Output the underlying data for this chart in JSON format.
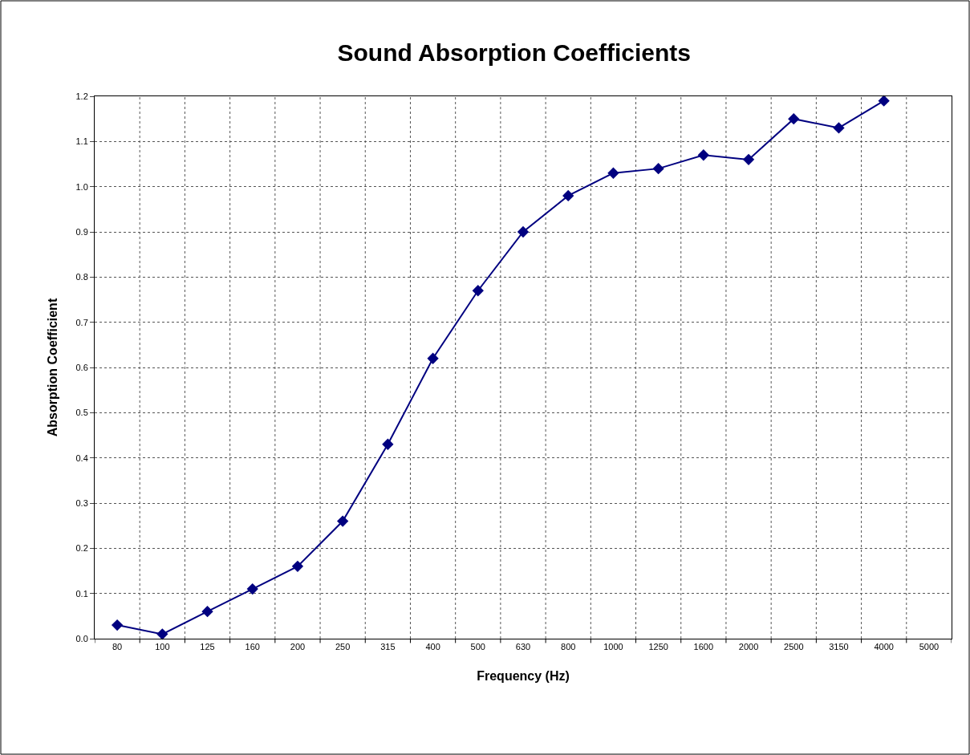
{
  "chart_data": {
    "type": "line",
    "title": "Sound Absorption Coefficients",
    "xlabel": "Frequency (Hz)",
    "ylabel": "Absorption Coefficient",
    "categories": [
      "80",
      "100",
      "125",
      "160",
      "200",
      "250",
      "315",
      "400",
      "500",
      "630",
      "800",
      "1000",
      "1250",
      "1600",
      "2000",
      "2500",
      "3150",
      "4000",
      "5000"
    ],
    "series": [
      {
        "color": "#000080",
        "values": [
          0.03,
          0.01,
          0.06,
          0.11,
          0.16,
          0.26,
          0.43,
          0.62,
          0.77,
          0.9,
          0.98,
          1.03,
          1.04,
          1.07,
          1.06,
          1.15,
          1.13,
          1.19,
          null
        ]
      }
    ],
    "ylim": [
      0,
      1.2
    ],
    "yticks": [
      {
        "value": 0,
        "label": "0.0"
      },
      {
        "value": 0.1,
        "label": "0.1"
      },
      {
        "value": 0.2,
        "label": "0.2"
      },
      {
        "value": 0.3,
        "label": "0.3"
      },
      {
        "value": 0.4,
        "label": "0.4"
      },
      {
        "value": 0.5,
        "label": "0.5"
      },
      {
        "value": 0.6,
        "label": "0.6"
      },
      {
        "value": 0.7,
        "label": "0.7"
      },
      {
        "value": 0.8,
        "label": "0.8"
      },
      {
        "value": 0.9,
        "label": "0.9"
      },
      {
        "value": 1.0,
        "label": "1.0"
      },
      {
        "value": 1.1,
        "label": "1.1"
      },
      {
        "value": 1.2,
        "label": "1.2"
      }
    ],
    "grid": true,
    "marker": "diamond",
    "line_style": "solid"
  }
}
